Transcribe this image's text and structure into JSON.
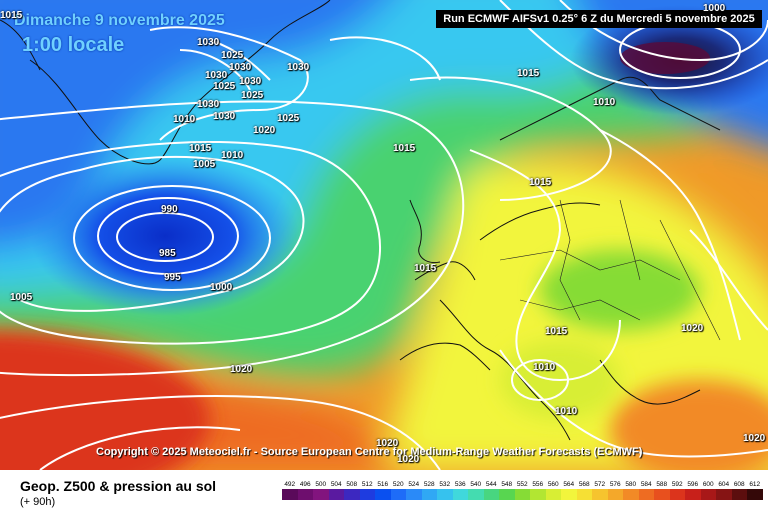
{
  "map": {
    "date": "Dimanche 9 novembre 2025",
    "time": "1:00 locale",
    "run": "Run ECMWF AIFSv1 0.25° 6 Z du Mercredi 5 novembre 2025",
    "copyright": "Copyright © 2025 Meteociel.fr - Source European Centre for Medium-Range Weather Forecasts (ECMWF)",
    "isobar_labels": [
      {
        "text": "1015"
      },
      {
        "text": "1030"
      },
      {
        "text": "1025"
      },
      {
        "text": "1030"
      },
      {
        "text": "1030"
      },
      {
        "text": "1030"
      },
      {
        "text": "1030"
      },
      {
        "text": "1025"
      },
      {
        "text": "1025"
      },
      {
        "text": "1030"
      },
      {
        "text": "1030"
      },
      {
        "text": "1010"
      },
      {
        "text": "1020"
      },
      {
        "text": "1025"
      },
      {
        "text": "1015"
      },
      {
        "text": "1010"
      },
      {
        "text": "1005"
      },
      {
        "text": "1015"
      },
      {
        "text": "990"
      },
      {
        "text": "985"
      },
      {
        "text": "995"
      },
      {
        "text": "1000"
      },
      {
        "text": "1005"
      },
      {
        "text": "1015"
      },
      {
        "text": "1015"
      },
      {
        "text": "1000"
      },
      {
        "text": "1015"
      },
      {
        "text": "1010"
      },
      {
        "text": "1015"
      },
      {
        "text": "1020"
      },
      {
        "text": "1020"
      },
      {
        "text": "1010"
      },
      {
        "text": "1010"
      },
      {
        "text": "1020"
      },
      {
        "text": "1020"
      },
      {
        "text": "1020"
      }
    ],
    "legend_colors": {
      "deep_blue": "#0a3cd8",
      "blue": "#2a78f0",
      "cyan": "#38c8f0",
      "green": "#48d270",
      "yellow": "#f2f53c",
      "orange": "#f09a28",
      "red": "#e8401c"
    }
  },
  "footer": {
    "product": "Geop. Z500 & pression au sol",
    "hours": "(+ 90h)",
    "legend": [
      {
        "label": "492",
        "color": "#5a0a5a"
      },
      {
        "label": "496",
        "color": "#6e0e6e"
      },
      {
        "label": "500",
        "color": "#82147e"
      },
      {
        "label": "504",
        "color": "#5a1aa0"
      },
      {
        "label": "508",
        "color": "#3c28c0"
      },
      {
        "label": "512",
        "color": "#1e3ce0"
      },
      {
        "label": "516",
        "color": "#0a50f0"
      },
      {
        "label": "520",
        "color": "#1e6cf8"
      },
      {
        "label": "524",
        "color": "#2a8af8"
      },
      {
        "label": "528",
        "color": "#30a8f4"
      },
      {
        "label": "532",
        "color": "#36c2ee"
      },
      {
        "label": "536",
        "color": "#40d8dc"
      },
      {
        "label": "540",
        "color": "#44dcb0"
      },
      {
        "label": "544",
        "color": "#48d680"
      },
      {
        "label": "548",
        "color": "#58d650"
      },
      {
        "label": "552",
        "color": "#86dc36"
      },
      {
        "label": "556",
        "color": "#b2e632"
      },
      {
        "label": "560",
        "color": "#d8ee34"
      },
      {
        "label": "564",
        "color": "#f2f53c"
      },
      {
        "label": "568",
        "color": "#f6e034"
      },
      {
        "label": "572",
        "color": "#f6c42e"
      },
      {
        "label": "576",
        "color": "#f4a82a"
      },
      {
        "label": "580",
        "color": "#f28a26"
      },
      {
        "label": "584",
        "color": "#ee6c22"
      },
      {
        "label": "588",
        "color": "#e8501e"
      },
      {
        "label": "592",
        "color": "#dc341c"
      },
      {
        "label": "596",
        "color": "#c8201a"
      },
      {
        "label": "600",
        "color": "#a81818"
      },
      {
        "label": "604",
        "color": "#861414"
      },
      {
        "label": "608",
        "color": "#5c0e0e"
      },
      {
        "label": "612",
        "color": "#340808"
      }
    ]
  }
}
